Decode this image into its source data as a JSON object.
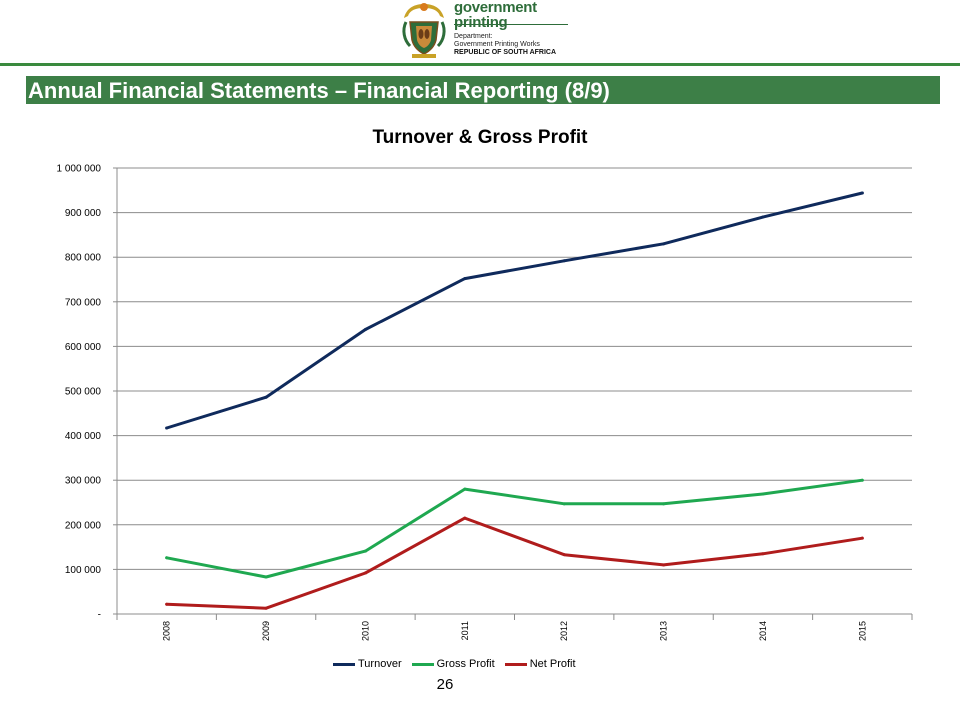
{
  "header": {
    "logo": {
      "word1": "government",
      "word2": "printing",
      "department": "Department:",
      "agency": "Government Printing Works",
      "country": "REPUBLIC OF SOUTH AFRICA",
      "icon": "coat-of-arms-icon"
    },
    "slide_title": "Annual Financial Statements – Financial Reporting (8/9)",
    "accent_color": "#3d7f47"
  },
  "footer": {
    "page_number": "26"
  },
  "chart_data": {
    "type": "line",
    "title": "Turnover & Gross Profit",
    "xlabel": "",
    "ylabel": "",
    "categories": [
      "2008",
      "2009",
      "2010",
      "2011",
      "2012",
      "2013",
      "2014",
      "2015"
    ],
    "ylim": [
      0,
      1000000
    ],
    "yticks": [
      0,
      100000,
      200000,
      300000,
      400000,
      500000,
      600000,
      700000,
      800000,
      900000,
      1000000
    ],
    "ytick_labels": [
      "-",
      "100 000",
      "200 000",
      "300 000",
      "400 000",
      "500 000",
      "600 000",
      "700 000",
      "800 000",
      "900 000",
      "1 000 000"
    ],
    "grid": true,
    "legend_position": "bottom",
    "series": [
      {
        "name": "Turnover",
        "color": "#0f2a5c",
        "values": [
          417000,
          486000,
          638000,
          752000,
          792000,
          830000,
          890000,
          944000
        ]
      },
      {
        "name": "Gross Profit",
        "color": "#1fa850",
        "values": [
          126000,
          83000,
          141000,
          280000,
          247000,
          247000,
          269000,
          300000
        ]
      },
      {
        "name": "Net Profit",
        "color": "#b01c1c",
        "values": [
          22000,
          13000,
          92000,
          215000,
          133000,
          110000,
          135000,
          170000
        ]
      }
    ]
  }
}
